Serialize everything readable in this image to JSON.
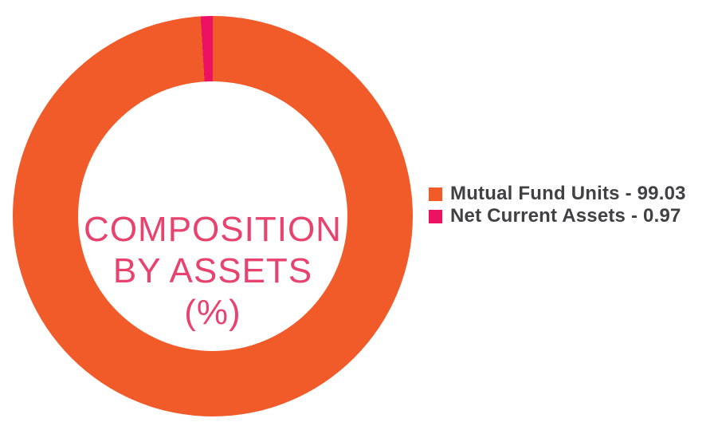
{
  "colors": {
    "slice_orange": "#F15A29",
    "slice_pink": "#ED1164",
    "center_title": "#E8436F",
    "legend_text": "#414042",
    "background": "#FFFFFF",
    "hole": "#FFFFFF"
  },
  "chart_data": {
    "type": "pie",
    "donut": true,
    "hole_ratio": 0.67,
    "start_angle_deg": 0,
    "direction": "clockwise",
    "title": "COMPOSITION BY ASSETS (%)",
    "categories": [
      "Mutual Fund Units",
      "Net Current Assets"
    ],
    "values": [
      99.03,
      0.97
    ],
    "colors": [
      "#F15A29",
      "#ED1164"
    ],
    "legend_position": "right",
    "legend_labels": [
      "Mutual Fund Units - 99.03",
      "Net Current Assets - 0.97"
    ],
    "center_title_lines": [
      "COMPOSITION",
      "BY ASSETS",
      "(%)"
    ]
  },
  "center_label": {
    "line1": "COMPOSITION",
    "line2": "BY ASSETS",
    "line3": "(%)"
  },
  "legend": {
    "items": [
      {
        "label": "Mutual Fund Units - 99.03",
        "color": "#F15A29"
      },
      {
        "label": "Net Current Assets - 0.97",
        "color": "#ED1164"
      }
    ]
  }
}
